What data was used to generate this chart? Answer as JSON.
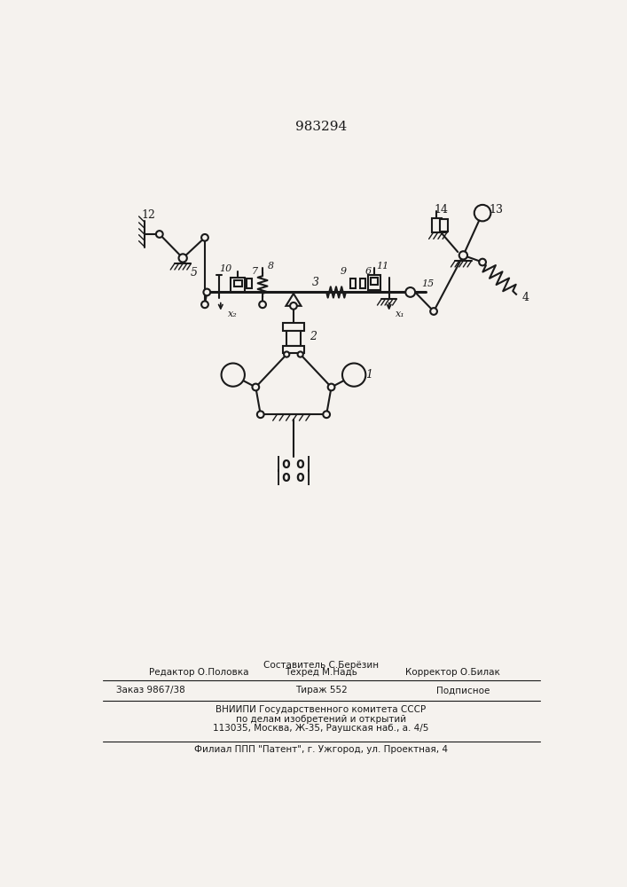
{
  "title": "983294",
  "bg_color": "#f5f2ee",
  "line_color": "#1a1a1a",
  "footer": {
    "l1a": "Составитель С.Берёзин",
    "l1b_left": "Редактор О.Половка",
    "l1b_cen": "Техред М.Надь",
    "l1b_right": "Корректор О.Билак",
    "l2_left": "Заказ 9867/38",
    "l2_cen": "Тираж 552",
    "l2_right": "Подписное",
    "l3": "ВНИИПИ Государственного комитета СССР",
    "l4": "по делам изобретений и открытий",
    "l5": "113035, Москва, Ж-35, Раушская наб., а. 4/5",
    "l6": "Филиал ППП \"Патент\", г. Ужгород, ул. Проектная, 4"
  }
}
